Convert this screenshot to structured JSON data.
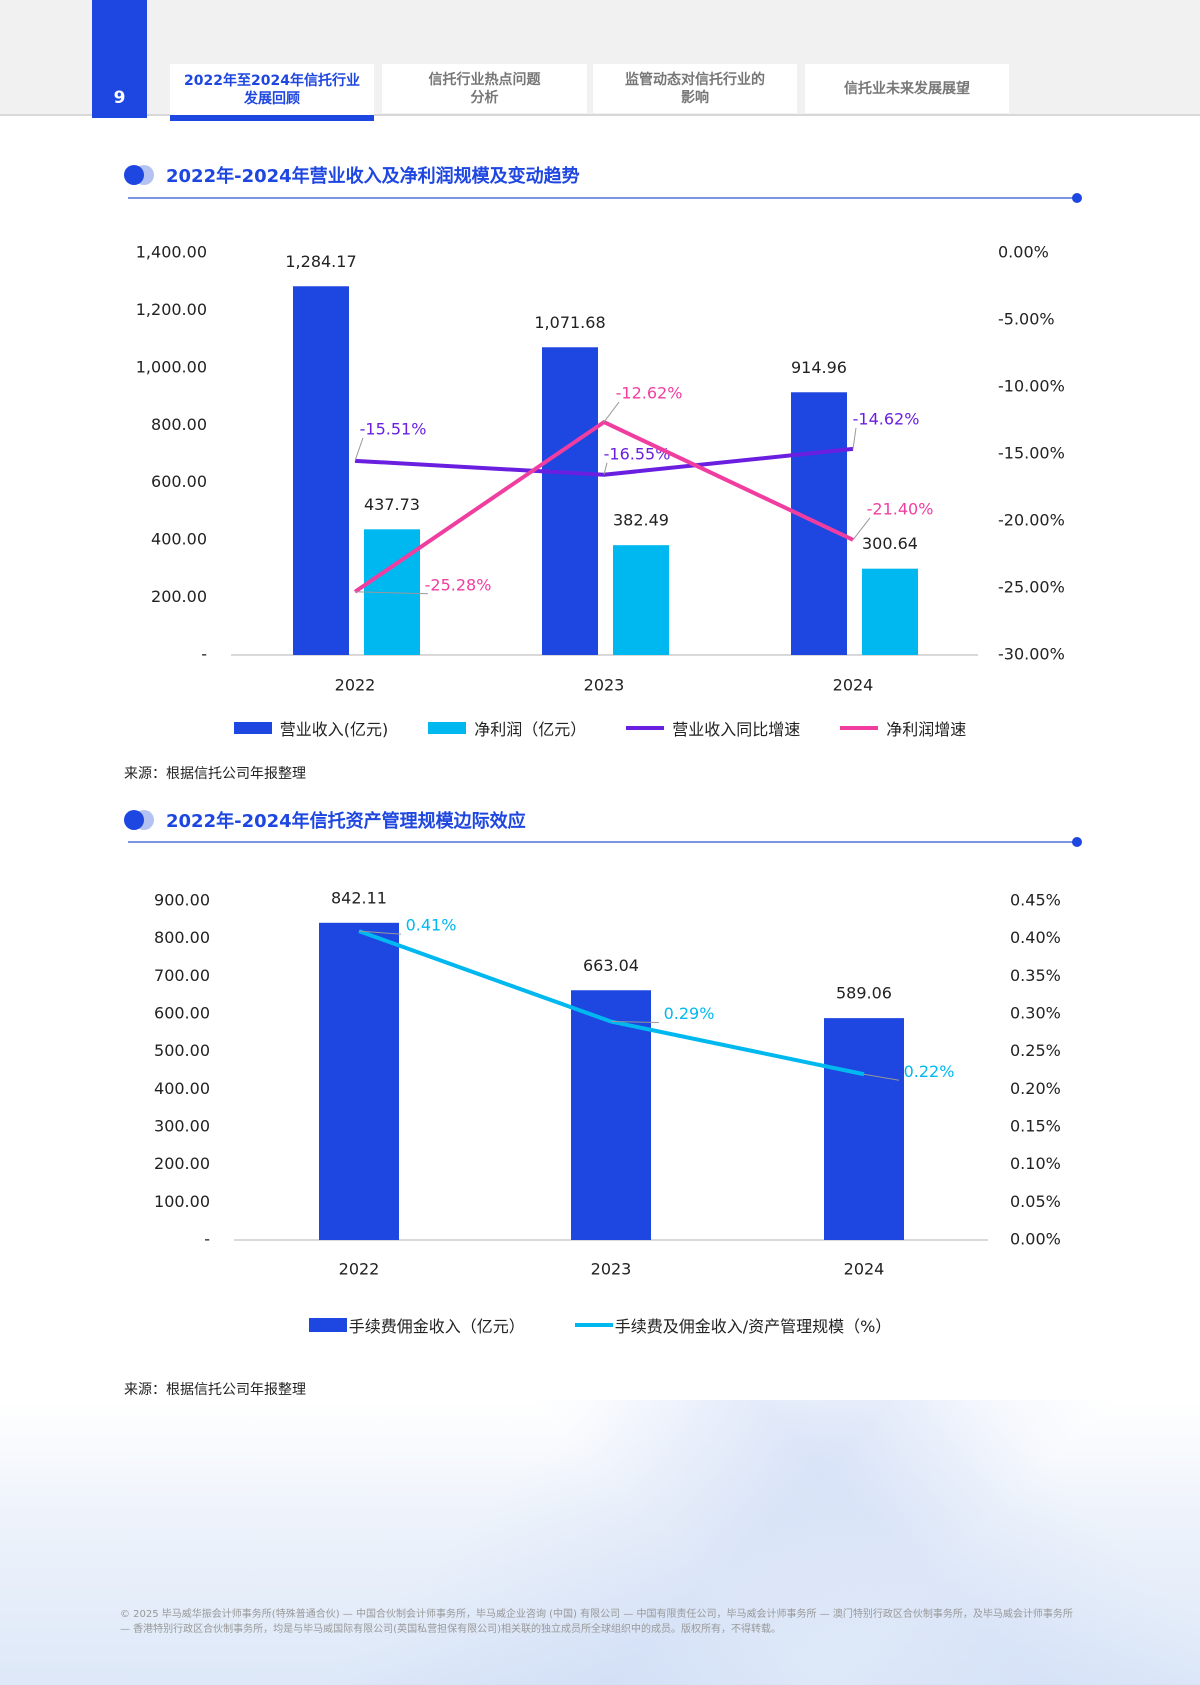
{
  "header": {
    "page_number": "9",
    "tabs": [
      {
        "label": "2022年至2024年信托行业\n发展回顾",
        "active": true
      },
      {
        "label": "信托行业热点问题\n分析",
        "active": false
      },
      {
        "label": "监管动态对信托行业的\n影响",
        "active": false
      },
      {
        "label": "信托业未来发展展望",
        "active": false
      }
    ]
  },
  "colors": {
    "accent": "#1e46e0",
    "light_bar": "#00b8f0",
    "purple": "#6a1fe0",
    "pink": "#f03ea0"
  },
  "section1": {
    "title": "2022年-2024年营业收入及净利润规模及变动趋势",
    "source": "来源：根据信托公司年报整理"
  },
  "section2": {
    "title": "2022年-2024年信托资产管理规模边际效应",
    "source": "来源：根据信托公司年报整理"
  },
  "chart_data": [
    {
      "type": "bar+line",
      "categories": [
        "2022",
        "2023",
        "2024"
      ],
      "left_axis": {
        "ylim": [
          0,
          1400
        ],
        "ticks": [
          "-",
          "200.00",
          "400.00",
          "600.00",
          "800.00",
          "1,000.00",
          "1,200.00",
          "1,400.00"
        ]
      },
      "right_axis": {
        "ylim": [
          -30,
          0
        ],
        "ticks": [
          "-30.00%",
          "-25.00%",
          "-20.00%",
          "-15.00%",
          "-10.00%",
          "-5.00%",
          "0.00%"
        ]
      },
      "series": [
        {
          "name": "营业收入(亿元)",
          "kind": "bar",
          "axis": "left",
          "color": "#1e46e0",
          "values": [
            1284.17,
            1071.68,
            914.96
          ],
          "labels": [
            "1,284.17",
            "1,071.68",
            "914.96"
          ]
        },
        {
          "name": "净利润（亿元）",
          "kind": "bar",
          "axis": "left",
          "color": "#00b8f0",
          "values": [
            437.73,
            382.49,
            300.64
          ],
          "labels": [
            "437.73",
            "382.49",
            "300.64"
          ]
        },
        {
          "name": "营业收入同比增速",
          "kind": "line",
          "axis": "right",
          "color": "#6a1fe0",
          "values": [
            -15.51,
            -16.55,
            -14.62
          ],
          "labels": [
            "-15.51%",
            "-16.55%",
            "-14.62%"
          ]
        },
        {
          "name": "净利润增速",
          "kind": "line",
          "axis": "right",
          "color": "#f03ea0",
          "values": [
            -25.28,
            -12.62,
            -21.4
          ],
          "labels": [
            "-25.28%",
            "-12.62%",
            "-21.40%"
          ]
        }
      ],
      "legend": "bottom",
      "grid": false
    },
    {
      "type": "bar+line",
      "categories": [
        "2022",
        "2023",
        "2024"
      ],
      "left_axis": {
        "ylim": [
          0,
          900
        ],
        "ticks": [
          "-",
          "100.00",
          "200.00",
          "300.00",
          "400.00",
          "500.00",
          "600.00",
          "700.00",
          "800.00",
          "900.00"
        ]
      },
      "right_axis": {
        "ylim": [
          0,
          0.45
        ],
        "ticks": [
          "0.00%",
          "0.05%",
          "0.10%",
          "0.15%",
          "0.20%",
          "0.25%",
          "0.30%",
          "0.35%",
          "0.40%",
          "0.45%"
        ]
      },
      "series": [
        {
          "name": "手续费佣金收入（亿元）",
          "kind": "bar",
          "axis": "left",
          "color": "#1e46e0",
          "values": [
            842.11,
            663.04,
            589.06
          ],
          "labels": [
            "842.11",
            "663.04",
            "589.06"
          ]
        },
        {
          "name": "手续费及佣金收入/资产管理规模（%）",
          "kind": "line",
          "axis": "right",
          "color": "#00b8f0",
          "values": [
            0.41,
            0.29,
            0.22
          ],
          "labels": [
            "0.41%",
            "0.29%",
            "0.22%"
          ]
        }
      ],
      "legend": "bottom",
      "grid": false
    }
  ],
  "footer": {
    "text": "© 2025 毕马威华振会计师事务所(特殊普通合伙) — 中国合伙制会计师事务所，毕马威企业咨询 (中国) 有限公司 — 中国有限责任公司，毕马威会计师事务所 — 澳门特别行政区合伙制事务所，及毕马威会计师事务所 — 香港特别行政区合伙制事务所，均是与毕马威国际有限公司(英国私营担保有限公司)相关联的独立成员所全球组织中的成员。版权所有，不得转载。"
  }
}
